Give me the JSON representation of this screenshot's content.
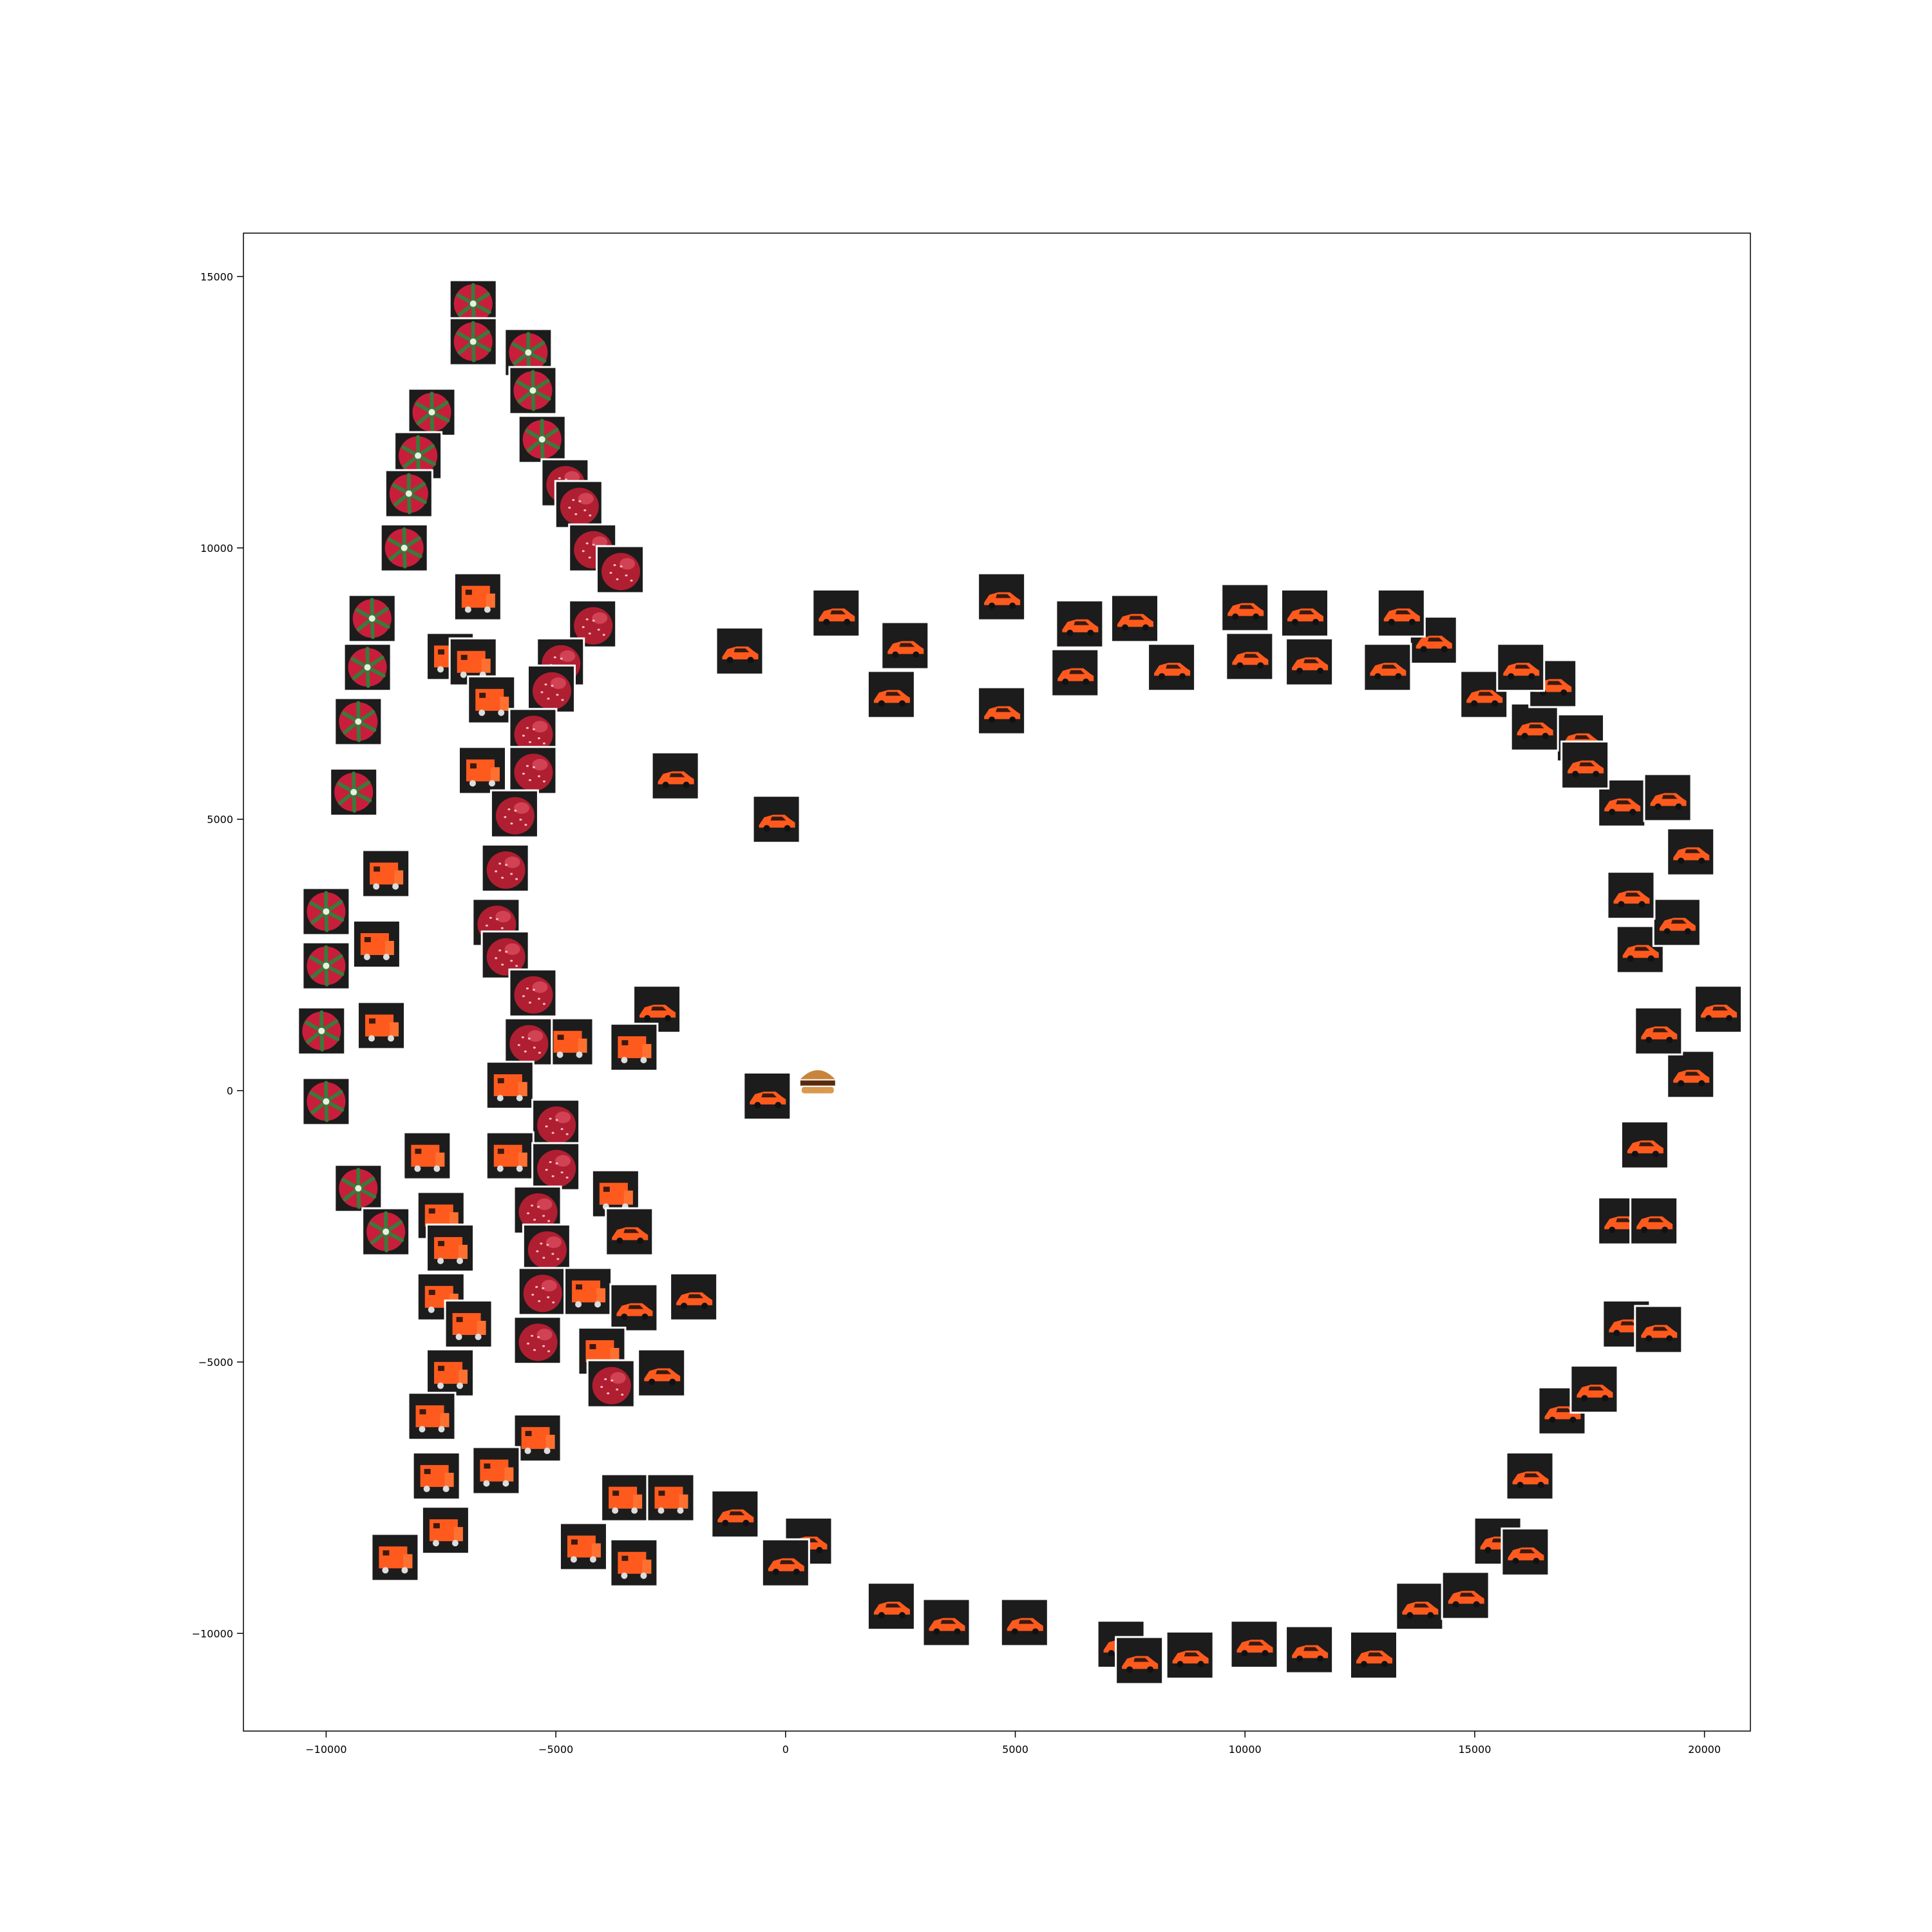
{
  "chart_data": {
    "type": "scatter",
    "title": "",
    "xlabel": "",
    "ylabel": "",
    "xlim": [
      -11800,
      21000
    ],
    "ylim": [
      -11800,
      15800
    ],
    "grid": false,
    "legend": "none",
    "x_ticks": [
      -10000,
      -5000,
      0,
      5000,
      10000,
      15000,
      20000
    ],
    "x_tick_labels": [
      "−10000",
      "−5000",
      "0",
      "5000",
      "10000",
      "15000",
      "20000"
    ],
    "y_ticks": [
      -10000,
      -5000,
      0,
      5000,
      10000,
      15000
    ],
    "y_tick_labels": [
      "−10000",
      "−5000",
      "0",
      "5000",
      "10000",
      "15000"
    ],
    "marker": "image-thumbnail",
    "thumbnail_kinds": {
      "pepper": {
        "icon": "green-red-vegetable-thumbnail",
        "bg": "#1c1c1c",
        "body": "#3a7a3a",
        "accent": "#c81e3c"
      },
      "strawberry": {
        "icon": "red-strawberry-thumbnail",
        "bg": "#1c1c1c",
        "body": "#b01e32",
        "accent": "#e85a6a"
      },
      "car": {
        "icon": "orange-toy-car-thumbnail",
        "bg": "#1c1c1c",
        "body": "#ff5a1e",
        "accent": "#ff8a3c"
      },
      "truck": {
        "icon": "orange-toy-truck-thumbnail",
        "bg": "#1c1c1c",
        "body": "#ff5a1e",
        "accent": "#ffd0b0"
      },
      "burger": {
        "icon": "burger-thumbnail",
        "bg": "#ffffff",
        "body": "#c8843c",
        "accent": "#5a2a10"
      }
    },
    "points": [
      {
        "x": -6800,
        "y": 14500,
        "kind": "pepper"
      },
      {
        "x": -6800,
        "y": 13800,
        "kind": "pepper"
      },
      {
        "x": -5600,
        "y": 13600,
        "kind": "pepper"
      },
      {
        "x": -7700,
        "y": 12500,
        "kind": "pepper"
      },
      {
        "x": -5500,
        "y": 12900,
        "kind": "pepper"
      },
      {
        "x": -8000,
        "y": 11700,
        "kind": "pepper"
      },
      {
        "x": -5300,
        "y": 12000,
        "kind": "pepper"
      },
      {
        "x": -8200,
        "y": 11000,
        "kind": "pepper"
      },
      {
        "x": -8300,
        "y": 10000,
        "kind": "pepper"
      },
      {
        "x": -4800,
        "y": 11200,
        "kind": "strawberry"
      },
      {
        "x": -4500,
        "y": 10800,
        "kind": "strawberry"
      },
      {
        "x": -4200,
        "y": 10000,
        "kind": "strawberry"
      },
      {
        "x": -3600,
        "y": 9600,
        "kind": "strawberry"
      },
      {
        "x": -9000,
        "y": 8700,
        "kind": "pepper"
      },
      {
        "x": -6700,
        "y": 9100,
        "kind": "truck"
      },
      {
        "x": -4200,
        "y": 8600,
        "kind": "strawberry"
      },
      {
        "x": -9100,
        "y": 7800,
        "kind": "pepper"
      },
      {
        "x": -7300,
        "y": 8000,
        "kind": "truck"
      },
      {
        "x": -6800,
        "y": 7900,
        "kind": "truck"
      },
      {
        "x": -4900,
        "y": 7900,
        "kind": "strawberry"
      },
      {
        "x": -5100,
        "y": 7400,
        "kind": "strawberry"
      },
      {
        "x": -9300,
        "y": 6800,
        "kind": "pepper"
      },
      {
        "x": -6400,
        "y": 7200,
        "kind": "truck"
      },
      {
        "x": -5500,
        "y": 6600,
        "kind": "strawberry"
      },
      {
        "x": -9400,
        "y": 5500,
        "kind": "pepper"
      },
      {
        "x": -6600,
        "y": 5900,
        "kind": "truck"
      },
      {
        "x": -5500,
        "y": 5900,
        "kind": "strawberry"
      },
      {
        "x": -5900,
        "y": 5100,
        "kind": "strawberry"
      },
      {
        "x": -8700,
        "y": 4000,
        "kind": "truck"
      },
      {
        "x": -6100,
        "y": 4100,
        "kind": "strawberry"
      },
      {
        "x": -10000,
        "y": 3300,
        "kind": "pepper"
      },
      {
        "x": -8900,
        "y": 2700,
        "kind": "truck"
      },
      {
        "x": -6300,
        "y": 3100,
        "kind": "strawberry"
      },
      {
        "x": -6100,
        "y": 2500,
        "kind": "strawberry"
      },
      {
        "x": -10000,
        "y": 2300,
        "kind": "pepper"
      },
      {
        "x": -8800,
        "y": 1200,
        "kind": "truck"
      },
      {
        "x": -5500,
        "y": 1800,
        "kind": "strawberry"
      },
      {
        "x": -10100,
        "y": 1100,
        "kind": "pepper"
      },
      {
        "x": -4700,
        "y": 900,
        "kind": "truck"
      },
      {
        "x": -5600,
        "y": 900,
        "kind": "strawberry"
      },
      {
        "x": -6000,
        "y": 100,
        "kind": "truck"
      },
      {
        "x": -10000,
        "y": -200,
        "kind": "pepper"
      },
      {
        "x": -5000,
        "y": -600,
        "kind": "strawberry"
      },
      {
        "x": -7800,
        "y": -1200,
        "kind": "truck"
      },
      {
        "x": -6000,
        "y": -1200,
        "kind": "truck"
      },
      {
        "x": -5000,
        "y": -1400,
        "kind": "strawberry"
      },
      {
        "x": -9300,
        "y": -1800,
        "kind": "pepper"
      },
      {
        "x": -3700,
        "y": -1900,
        "kind": "truck"
      },
      {
        "x": -7500,
        "y": -2300,
        "kind": "truck"
      },
      {
        "x": -5400,
        "y": -2200,
        "kind": "strawberry"
      },
      {
        "x": -8700,
        "y": -2600,
        "kind": "pepper"
      },
      {
        "x": -3400,
        "y": -2600,
        "kind": "car"
      },
      {
        "x": -7300,
        "y": -2900,
        "kind": "truck"
      },
      {
        "x": -5200,
        "y": -2900,
        "kind": "strawberry"
      },
      {
        "x": -7500,
        "y": -3800,
        "kind": "truck"
      },
      {
        "x": -5300,
        "y": -3700,
        "kind": "strawberry"
      },
      {
        "x": -4300,
        "y": -3700,
        "kind": "truck"
      },
      {
        "x": -3300,
        "y": -4000,
        "kind": "car"
      },
      {
        "x": -2000,
        "y": -3800,
        "kind": "car"
      },
      {
        "x": -6900,
        "y": -4300,
        "kind": "truck"
      },
      {
        "x": -5400,
        "y": -4600,
        "kind": "strawberry"
      },
      {
        "x": -4000,
        "y": -4800,
        "kind": "truck"
      },
      {
        "x": -7300,
        "y": -5200,
        "kind": "truck"
      },
      {
        "x": -3800,
        "y": -5400,
        "kind": "strawberry"
      },
      {
        "x": -2700,
        "y": -5200,
        "kind": "car"
      },
      {
        "x": -7700,
        "y": -6000,
        "kind": "truck"
      },
      {
        "x": -5400,
        "y": -6400,
        "kind": "truck"
      },
      {
        "x": -7600,
        "y": -7100,
        "kind": "truck"
      },
      {
        "x": -6300,
        "y": -7000,
        "kind": "truck"
      },
      {
        "x": -3500,
        "y": -7500,
        "kind": "truck"
      },
      {
        "x": -2500,
        "y": -7500,
        "kind": "truck"
      },
      {
        "x": -7400,
        "y": -8100,
        "kind": "truck"
      },
      {
        "x": -8500,
        "y": -8600,
        "kind": "truck"
      },
      {
        "x": -4400,
        "y": -8400,
        "kind": "truck"
      },
      {
        "x": -3300,
        "y": -8700,
        "kind": "truck"
      },
      {
        "x": -1100,
        "y": -7800,
        "kind": "car"
      },
      {
        "x": 500,
        "y": -8300,
        "kind": "car"
      },
      {
        "x": 0,
        "y": -8700,
        "kind": "car"
      },
      {
        "x": 2300,
        "y": -9500,
        "kind": "car"
      },
      {
        "x": 3500,
        "y": -9800,
        "kind": "car"
      },
      {
        "x": 5200,
        "y": -9800,
        "kind": "car"
      },
      {
        "x": 7300,
        "y": -10200,
        "kind": "car"
      },
      {
        "x": 7700,
        "y": -10500,
        "kind": "car"
      },
      {
        "x": 8800,
        "y": -10400,
        "kind": "car"
      },
      {
        "x": 10200,
        "y": -10200,
        "kind": "car"
      },
      {
        "x": 11400,
        "y": -10300,
        "kind": "car"
      },
      {
        "x": 12800,
        "y": -10400,
        "kind": "car"
      },
      {
        "x": 13800,
        "y": -9500,
        "kind": "car"
      },
      {
        "x": 14800,
        "y": -9300,
        "kind": "car"
      },
      {
        "x": 15500,
        "y": -8300,
        "kind": "car"
      },
      {
        "x": 16100,
        "y": -8500,
        "kind": "car"
      },
      {
        "x": 16200,
        "y": -7100,
        "kind": "car"
      },
      {
        "x": 16900,
        "y": -5900,
        "kind": "car"
      },
      {
        "x": 17600,
        "y": -5500,
        "kind": "car"
      },
      {
        "x": 18300,
        "y": -4300,
        "kind": "car"
      },
      {
        "x": 19000,
        "y": -4400,
        "kind": "car"
      },
      {
        "x": 18200,
        "y": -2400,
        "kind": "car"
      },
      {
        "x": 18900,
        "y": -2400,
        "kind": "car"
      },
      {
        "x": 18700,
        "y": -1000,
        "kind": "car"
      },
      {
        "x": 19700,
        "y": 300,
        "kind": "car"
      },
      {
        "x": 19000,
        "y": 1100,
        "kind": "car"
      },
      {
        "x": 20300,
        "y": 1500,
        "kind": "car"
      },
      {
        "x": 18600,
        "y": 2600,
        "kind": "car"
      },
      {
        "x": 19400,
        "y": 3100,
        "kind": "car"
      },
      {
        "x": 18400,
        "y": 3600,
        "kind": "car"
      },
      {
        "x": 19700,
        "y": 4400,
        "kind": "car"
      },
      {
        "x": 18200,
        "y": 5300,
        "kind": "car"
      },
      {
        "x": 19200,
        "y": 5400,
        "kind": "car"
      },
      {
        "x": 17300,
        "y": 6500,
        "kind": "car"
      },
      {
        "x": 16300,
        "y": 6700,
        "kind": "car"
      },
      {
        "x": 17400,
        "y": 6000,
        "kind": "car"
      },
      {
        "x": 16700,
        "y": 7500,
        "kind": "car"
      },
      {
        "x": 15200,
        "y": 7300,
        "kind": "car"
      },
      {
        "x": 16000,
        "y": 7800,
        "kind": "car"
      },
      {
        "x": 14100,
        "y": 8300,
        "kind": "car"
      },
      {
        "x": 13100,
        "y": 7800,
        "kind": "car"
      },
      {
        "x": 13400,
        "y": 8800,
        "kind": "car"
      },
      {
        "x": 11400,
        "y": 7900,
        "kind": "car"
      },
      {
        "x": 11300,
        "y": 8800,
        "kind": "car"
      },
      {
        "x": 10100,
        "y": 8000,
        "kind": "car"
      },
      {
        "x": 10000,
        "y": 8900,
        "kind": "car"
      },
      {
        "x": 8400,
        "y": 7800,
        "kind": "car"
      },
      {
        "x": 7600,
        "y": 8700,
        "kind": "car"
      },
      {
        "x": 6300,
        "y": 7700,
        "kind": "car"
      },
      {
        "x": 6400,
        "y": 8600,
        "kind": "car"
      },
      {
        "x": 4700,
        "y": 9100,
        "kind": "car"
      },
      {
        "x": 4700,
        "y": 7000,
        "kind": "car"
      },
      {
        "x": 2600,
        "y": 8200,
        "kind": "car"
      },
      {
        "x": 2300,
        "y": 7300,
        "kind": "car"
      },
      {
        "x": 1100,
        "y": 8800,
        "kind": "car"
      },
      {
        "x": -1000,
        "y": 8100,
        "kind": "car"
      },
      {
        "x": -2400,
        "y": 5800,
        "kind": "car"
      },
      {
        "x": -200,
        "y": 5000,
        "kind": "car"
      },
      {
        "x": -2800,
        "y": 1500,
        "kind": "car"
      },
      {
        "x": -3300,
        "y": 800,
        "kind": "truck"
      },
      {
        "x": -400,
        "y": -100,
        "kind": "car"
      },
      {
        "x": 700,
        "y": 200,
        "kind": "burger"
      }
    ]
  }
}
